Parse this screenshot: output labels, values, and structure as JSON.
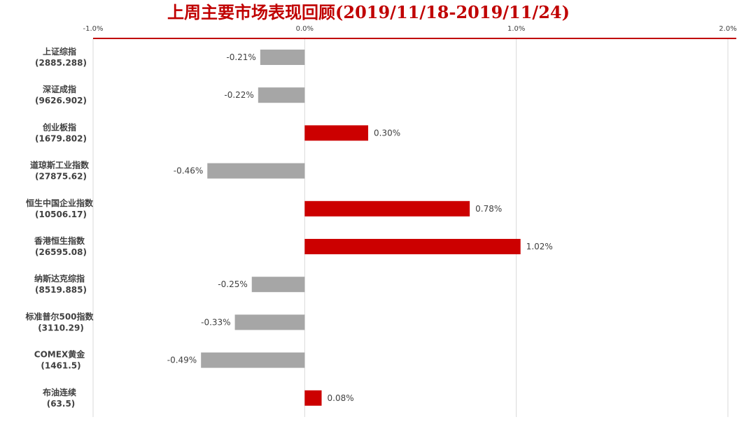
{
  "colors": {
    "title": "#c00000",
    "axis_line": "#c00000",
    "positive": "#cc0000",
    "negative": "#a6a6a6",
    "grid": "#d9d9d9"
  },
  "chart_data": {
    "type": "bar",
    "orientation": "horizontal",
    "title": "上周主要市场表现回顾(2019/11/18-2019/11/24)",
    "xlabel": "",
    "ylabel": "",
    "xlim": [
      -1.0,
      2.0
    ],
    "xticks": [
      -1.0,
      0.0,
      1.0,
      2.0
    ],
    "xtick_labels": [
      "-1.0%",
      "0.0%",
      "1.0%",
      "2.0%"
    ],
    "x_axis_position": "top",
    "grid": true,
    "legend": "none",
    "categories": [
      {
        "name": "上证综指",
        "level": "(2885.288)"
      },
      {
        "name": "深证成指",
        "level": "(9626.902)"
      },
      {
        "name": "创业板指",
        "level": "(1679.802)"
      },
      {
        "name": "道琼斯工业指数",
        "level": "(27875.62)"
      },
      {
        "name": "恒生中国企业指数",
        "level": "(10506.17)"
      },
      {
        "name": "香港恒生指数",
        "level": "(26595.08)"
      },
      {
        "name": "纳斯达克综指",
        "level": "(8519.885)"
      },
      {
        "name": "标准普尔500指数",
        "level": "(3110.29)"
      },
      {
        "name": "COMEX黄金",
        "level": "(1461.5)"
      },
      {
        "name": "布油连续",
        "level": "(63.5)"
      }
    ],
    "values": [
      -0.21,
      -0.22,
      0.3,
      -0.46,
      0.78,
      1.02,
      -0.25,
      -0.33,
      -0.49,
      0.08
    ],
    "value_labels": [
      "-0.21%",
      "-0.22%",
      "0.30%",
      "-0.46%",
      "0.78%",
      "1.02%",
      "-0.25%",
      "-0.33%",
      "-0.49%",
      "0.08%"
    ]
  }
}
